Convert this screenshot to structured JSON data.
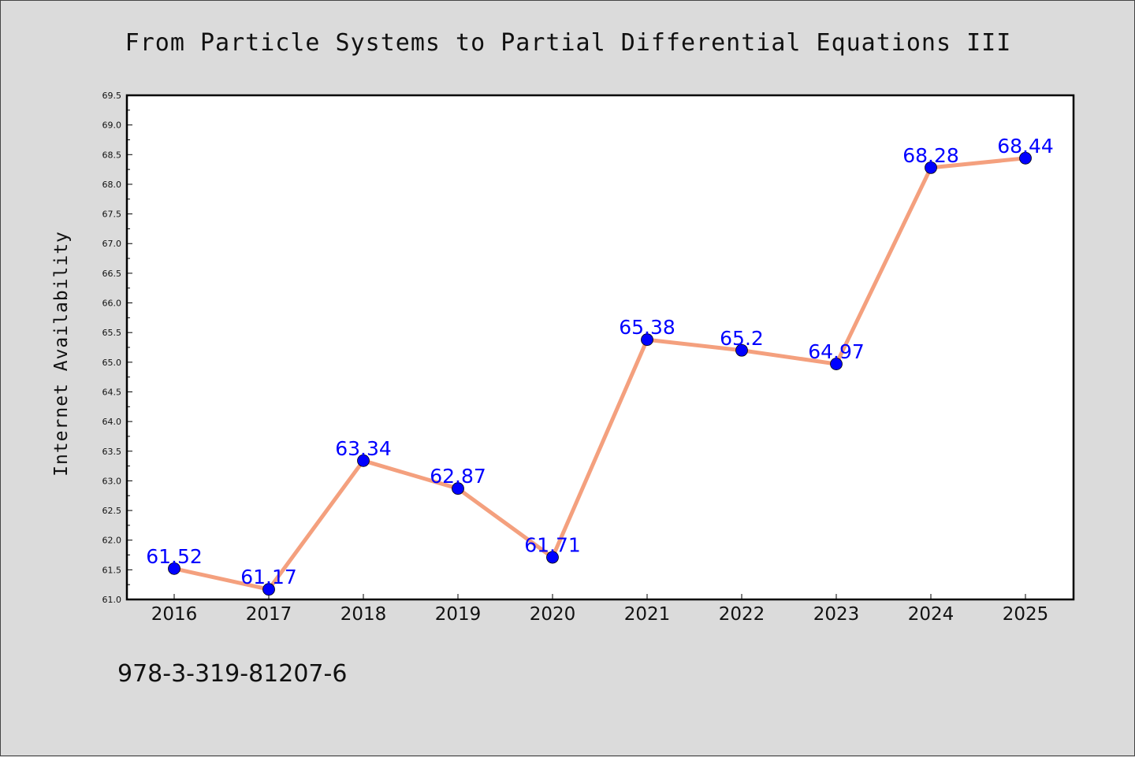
{
  "chart_data": {
    "type": "line",
    "title": "From Particle Systems to Partial Differential Equations III",
    "xlabel": "",
    "ylabel": "Internet Availability",
    "categories": [
      "2016",
      "2017",
      "2018",
      "2019",
      "2020",
      "2021",
      "2022",
      "2023",
      "2024",
      "2025"
    ],
    "values": [
      61.52,
      61.17,
      63.34,
      62.87,
      61.71,
      65.38,
      65.2,
      64.97,
      68.28,
      68.44
    ],
    "data_labels": [
      "61.52",
      "61.17",
      "63.34",
      "62.87",
      "61.71",
      "65.38",
      "65.2",
      "64.97",
      "68.28",
      "68.44"
    ],
    "ylim": [
      61.0,
      69.5
    ],
    "yticks": [
      "61.0",
      "61.5",
      "62.0",
      "62.5",
      "63.0",
      "63.5",
      "64.0",
      "64.5",
      "65.0",
      "65.5",
      "66.0",
      "66.5",
      "67.0",
      "67.5",
      "68.0",
      "68.5",
      "69.0",
      "69.5"
    ],
    "grid": false,
    "legend": "none",
    "line_color": "#f4a07e",
    "marker_color": "#0000ff",
    "label_color": "#0000ff"
  },
  "footer": {
    "isbn": "978-3-319-81207-6"
  }
}
